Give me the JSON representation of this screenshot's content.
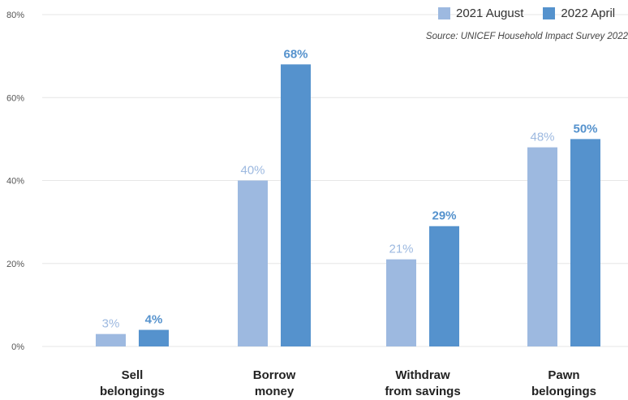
{
  "chart_data": {
    "type": "bar",
    "categories": [
      [
        "Sell",
        "belongings"
      ],
      [
        "Borrow",
        "money"
      ],
      [
        "Withdraw",
        "from savings"
      ],
      [
        "Pawn",
        "belongings"
      ]
    ],
    "series": [
      {
        "name": "2021 August",
        "values": [
          3,
          40,
          21,
          48
        ],
        "labels": [
          "3%",
          "40%",
          "21%",
          "48%"
        ],
        "color": "#9db9e0"
      },
      {
        "name": "2022 April",
        "values": [
          4,
          68,
          29,
          50
        ],
        "labels": [
          "4%",
          "68%",
          "29%",
          "50%"
        ],
        "color": "#5592cd"
      }
    ],
    "yticks": [
      "0%",
      "20%",
      "40%",
      "60%",
      "80%"
    ],
    "ylim": [
      0,
      80
    ],
    "grid": true,
    "legend_position": "top-right",
    "source": "Source: UNICEF Household Impact Survey 2022",
    "colors": {
      "grid": "#e6e6e6",
      "tick_text": "#555555",
      "label_text": "#222222"
    }
  }
}
